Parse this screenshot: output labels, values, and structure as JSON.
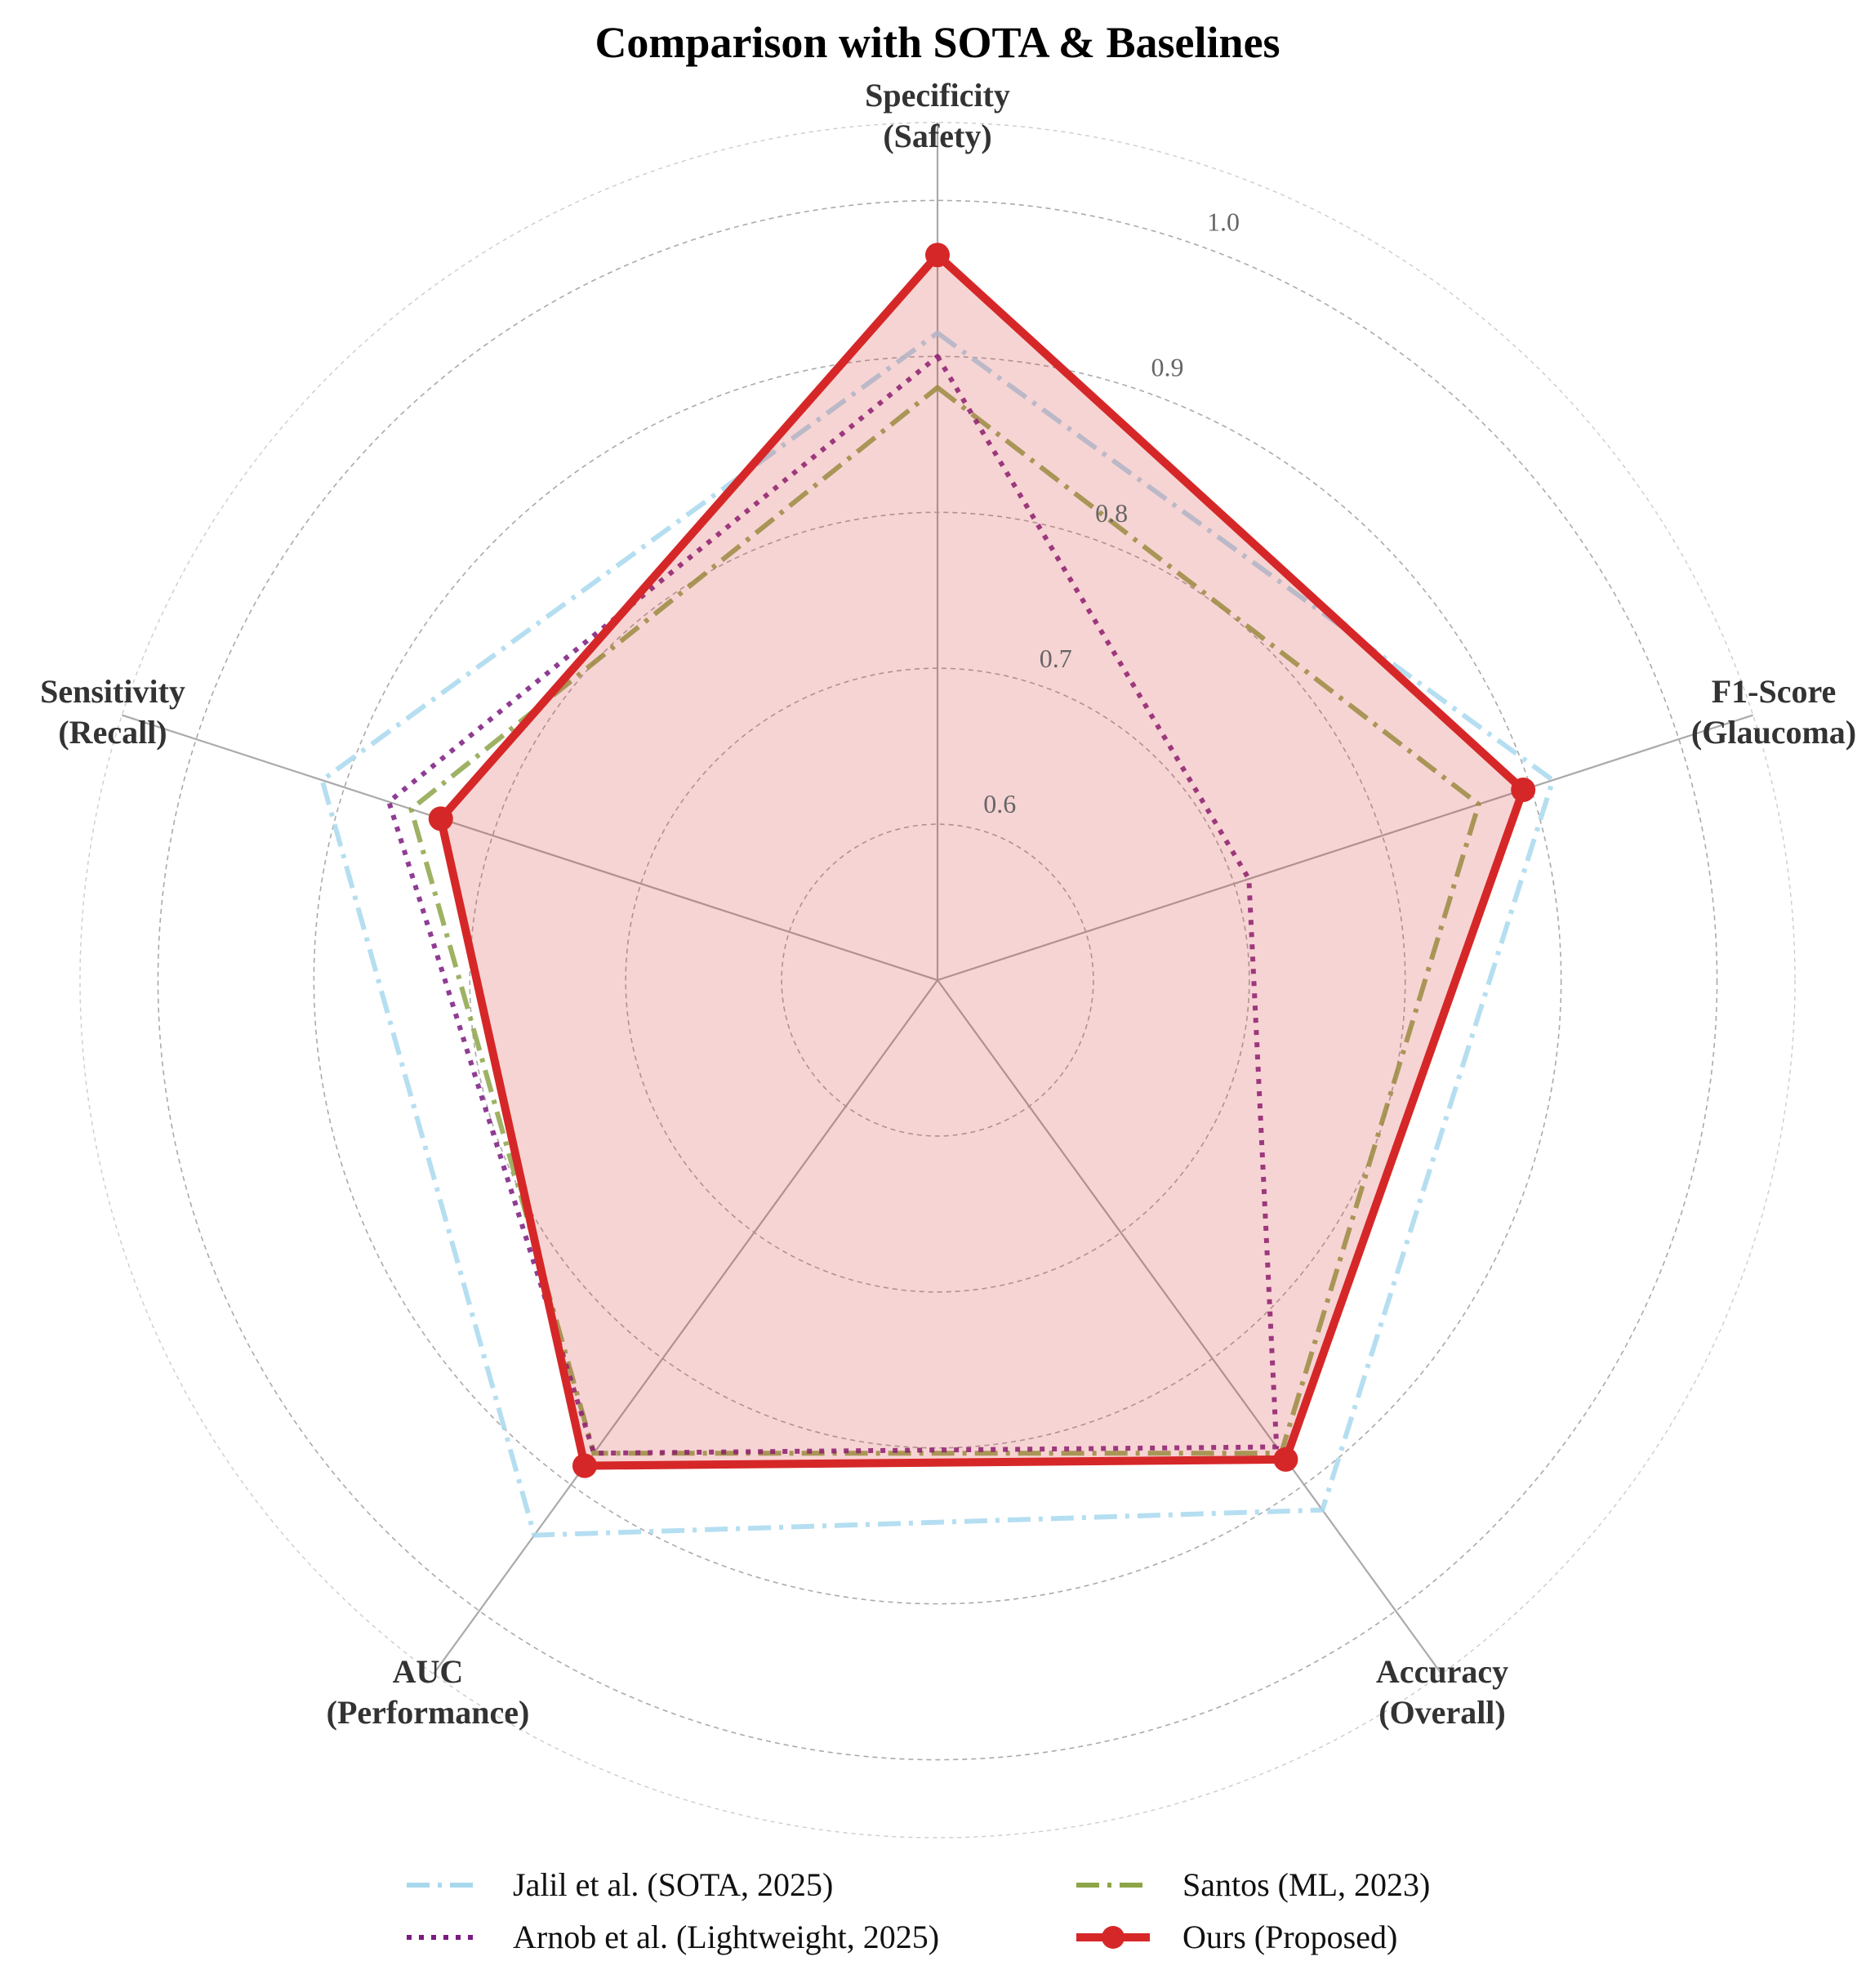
{
  "chart_data": {
    "type": "radar",
    "title": "Comparison with SOTA & Baselines",
    "axes": [
      {
        "line1": "Specificity",
        "line2": "(Safety)"
      },
      {
        "line1": "F1-Score",
        "line2": "(Glaucoma)"
      },
      {
        "line1": "Accuracy",
        "line2": "(Overall)"
      },
      {
        "line1": "AUC",
        "line2": "(Performance)"
      },
      {
        "line1": "Sensitivity",
        "line2": "(Recall)"
      }
    ],
    "rmin": 0.5,
    "rmax": 1.05,
    "ticks": [
      0.6,
      0.7,
      0.8,
      0.9,
      1.0
    ],
    "tick_labels": [
      "0.6",
      "0.7",
      "0.8",
      "0.9",
      "1.0"
    ],
    "series": [
      {
        "name": "Jalil et al. (SOTA, 2025)",
        "values": [
          0.915,
          0.915,
          0.92,
          0.94,
          0.915
        ],
        "color": "#a8d8ee",
        "style": "dashdot",
        "fill": false,
        "markers": false
      },
      {
        "name": "Santos (ML, 2023)",
        "values": [
          0.88,
          0.865,
          0.875,
          0.875,
          0.855
        ],
        "color": "#8da548",
        "style": "dashdot",
        "fill": false,
        "markers": false
      },
      {
        "name": "Arnob et al. (Lightweight, 2025)",
        "values": [
          0.9,
          0.71,
          0.87,
          0.875,
          0.87
        ],
        "color": "#7b1a80",
        "style": "dotted",
        "fill": false,
        "markers": false
      },
      {
        "name": "Ours (Proposed)",
        "values": [
          0.965,
          0.895,
          0.88,
          0.885,
          0.835
        ],
        "color": "#d62728",
        "style": "solid",
        "fill": true,
        "markers": true
      }
    ],
    "legend_order": [
      "Jalil et al. (SOTA, 2025)",
      "Arnob et al. (Lightweight, 2025)",
      "Santos (ML, 2023)",
      "Ours (Proposed)"
    ],
    "legend_position": "bottom-center",
    "grid": true
  }
}
